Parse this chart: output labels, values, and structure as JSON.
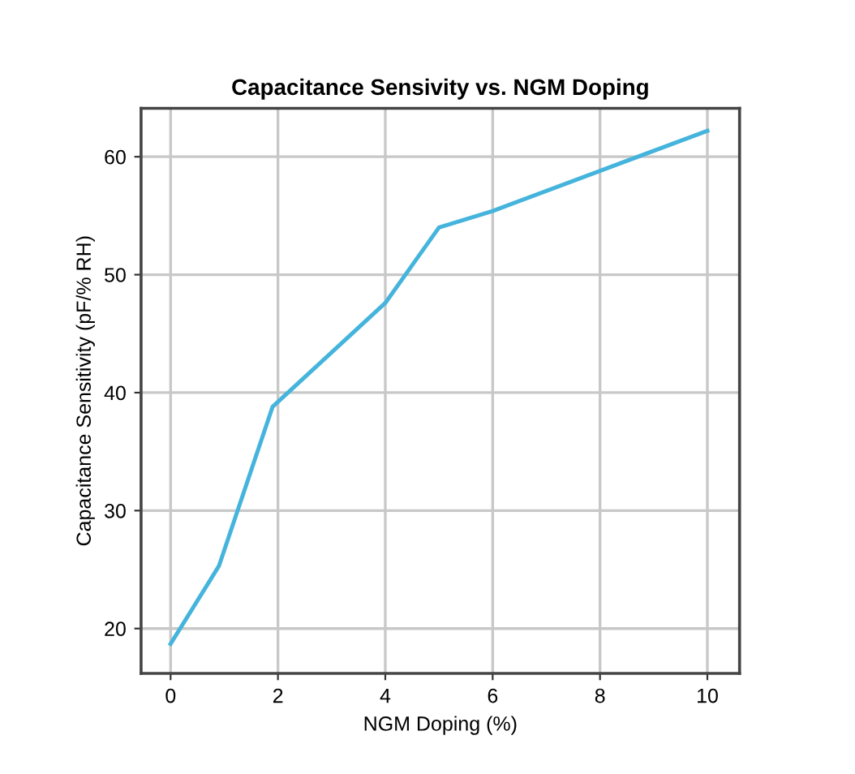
{
  "chart_data": {
    "type": "line",
    "title": "Capacitance Sensivity vs. NGM Doping",
    "xlabel": "NGM Doping (%)",
    "ylabel": "Capacitance Sensitivity (pF/% RH)",
    "x": [
      0,
      0.9,
      1.9,
      4,
      5,
      6,
      8,
      10
    ],
    "series": [
      {
        "color": "#45b4dc",
        "values": [
          18.7,
          25.3,
          38.8,
          47.6,
          54.0,
          55.4,
          58.8,
          62.2
        ]
      }
    ],
    "xlim": [
      -0.55,
      10.6
    ],
    "ylim": [
      16.2,
      64.1
    ],
    "xticks": [
      0,
      2,
      4,
      6,
      8,
      10
    ],
    "yticks": [
      20,
      30,
      40,
      50,
      60
    ],
    "grid": true,
    "marker": "none",
    "line_style": "solid"
  }
}
